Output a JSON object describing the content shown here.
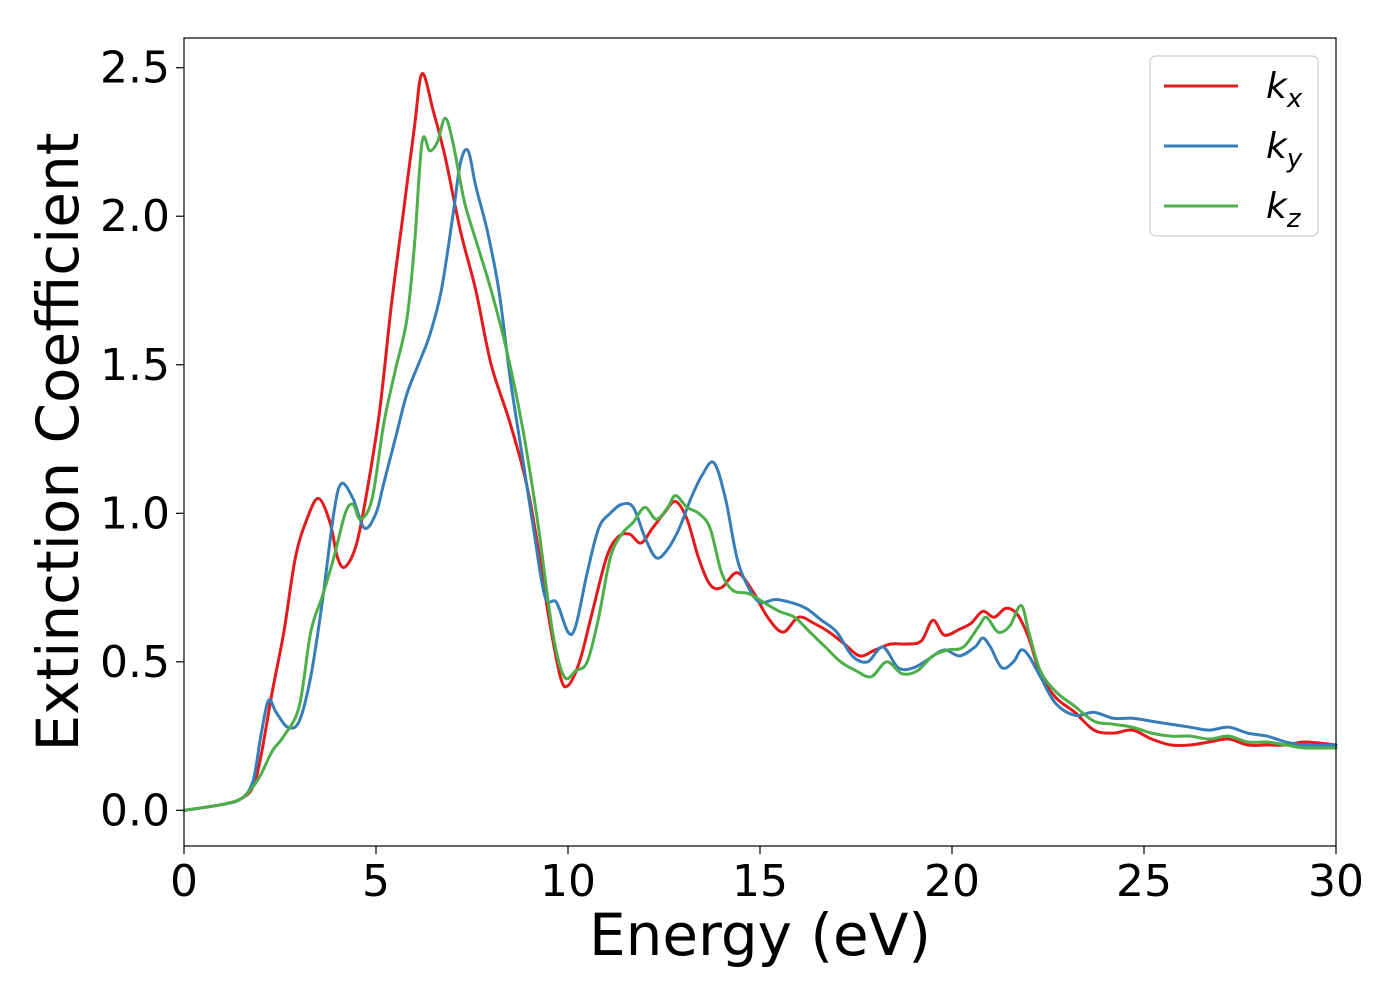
{
  "chart_data": {
    "type": "line",
    "xlabel": "Energy (eV)",
    "ylabel": "Extinction Coefficient",
    "xlim": [
      0,
      30
    ],
    "ylim": [
      -0.12,
      2.6
    ],
    "xticks": [
      "0",
      "5",
      "10",
      "15",
      "20",
      "25",
      "30"
    ],
    "yticks": [
      "0.0",
      "0.5",
      "1.0",
      "1.5",
      "2.0",
      "2.5"
    ],
    "grid": false,
    "legend_position": "top-right",
    "series": [
      {
        "name": "k",
        "subscript": "x",
        "color": "#e41a1c",
        "x": [
          0,
          1,
          1.5,
          1.8,
          2.0,
          2.3,
          2.6,
          2.9,
          3.2,
          3.5,
          3.8,
          4.0,
          4.2,
          4.5,
          4.8,
          5.1,
          5.4,
          5.7,
          6.0,
          6.2,
          6.5,
          6.8,
          7.2,
          7.6,
          8.0,
          8.5,
          9.0,
          9.5,
          9.8,
          10.0,
          10.3,
          10.6,
          11.0,
          11.3,
          11.6,
          11.9,
          12.2,
          12.5,
          12.8,
          13.1,
          13.4,
          13.7,
          14.0,
          14.4,
          14.8,
          15.2,
          15.6,
          16.0,
          16.4,
          16.8,
          17.2,
          17.6,
          18.0,
          18.4,
          18.8,
          19.2,
          19.5,
          19.8,
          20.2,
          20.5,
          20.8,
          21.1,
          21.4,
          21.7,
          22.0,
          22.3,
          22.7,
          23.2,
          23.7,
          24.2,
          24.7,
          25.2,
          25.7,
          26.2,
          26.7,
          27.2,
          27.7,
          28.2,
          28.7,
          29.2,
          30
        ],
        "y": [
          0,
          0.02,
          0.04,
          0.08,
          0.18,
          0.4,
          0.6,
          0.85,
          0.98,
          1.05,
          0.97,
          0.85,
          0.82,
          0.9,
          1.1,
          1.35,
          1.7,
          2.0,
          2.3,
          2.48,
          2.35,
          2.2,
          1.95,
          1.75,
          1.5,
          1.3,
          1.05,
          0.65,
          0.45,
          0.42,
          0.5,
          0.65,
          0.85,
          0.92,
          0.93,
          0.9,
          0.95,
          1.0,
          1.04,
          0.98,
          0.85,
          0.76,
          0.75,
          0.8,
          0.74,
          0.65,
          0.6,
          0.65,
          0.63,
          0.6,
          0.56,
          0.52,
          0.54,
          0.56,
          0.56,
          0.57,
          0.64,
          0.59,
          0.61,
          0.63,
          0.67,
          0.65,
          0.68,
          0.66,
          0.58,
          0.46,
          0.38,
          0.33,
          0.27,
          0.26,
          0.27,
          0.24,
          0.22,
          0.22,
          0.23,
          0.24,
          0.22,
          0.22,
          0.22,
          0.23,
          0.22
        ]
      },
      {
        "name": "k",
        "subscript": "y",
        "color": "#377eb8",
        "x": [
          0,
          1,
          1.5,
          1.8,
          2.0,
          2.2,
          2.4,
          2.7,
          3.0,
          3.3,
          3.6,
          3.9,
          4.1,
          4.4,
          4.7,
          5.0,
          5.2,
          5.5,
          5.8,
          6.1,
          6.4,
          6.7,
          7.0,
          7.2,
          7.4,
          7.6,
          7.9,
          8.2,
          8.5,
          8.8,
          9.1,
          9.4,
          9.7,
          10.0,
          10.2,
          10.5,
          10.8,
          11.1,
          11.4,
          11.7,
          12.0,
          12.3,
          12.6,
          12.9,
          13.2,
          13.5,
          13.8,
          14.1,
          14.4,
          14.7,
          15.0,
          15.4,
          15.8,
          16.2,
          16.6,
          17.0,
          17.4,
          17.8,
          18.2,
          18.6,
          19.0,
          19.4,
          19.8,
          20.2,
          20.6,
          20.8,
          21.0,
          21.3,
          21.6,
          21.8,
          22.0,
          22.3,
          22.7,
          23.2,
          23.7,
          24.2,
          24.7,
          25.2,
          25.7,
          26.2,
          26.7,
          27.2,
          27.7,
          28.2,
          28.7,
          29.2,
          30
        ],
        "y": [
          0,
          0.02,
          0.04,
          0.1,
          0.25,
          0.37,
          0.33,
          0.28,
          0.3,
          0.45,
          0.7,
          1.0,
          1.1,
          1.05,
          0.95,
          1.0,
          1.1,
          1.25,
          1.4,
          1.5,
          1.6,
          1.75,
          2.0,
          2.18,
          2.22,
          2.1,
          1.95,
          1.75,
          1.45,
          1.2,
          0.95,
          0.72,
          0.7,
          0.6,
          0.62,
          0.8,
          0.95,
          1.0,
          1.03,
          1.02,
          0.92,
          0.85,
          0.88,
          0.95,
          1.05,
          1.13,
          1.17,
          1.05,
          0.85,
          0.75,
          0.7,
          0.71,
          0.7,
          0.68,
          0.64,
          0.6,
          0.52,
          0.5,
          0.55,
          0.48,
          0.48,
          0.51,
          0.54,
          0.52,
          0.55,
          0.58,
          0.55,
          0.48,
          0.5,
          0.54,
          0.52,
          0.45,
          0.36,
          0.32,
          0.33,
          0.31,
          0.31,
          0.3,
          0.29,
          0.28,
          0.27,
          0.28,
          0.26,
          0.25,
          0.23,
          0.22,
          0.22
        ]
      },
      {
        "name": "k",
        "subscript": "z",
        "color": "#4daf4a",
        "x": [
          0,
          1,
          1.5,
          1.8,
          2.0,
          2.3,
          2.6,
          3.0,
          3.3,
          3.6,
          3.9,
          4.2,
          4.4,
          4.6,
          4.9,
          5.2,
          5.5,
          5.8,
          6.0,
          6.2,
          6.4,
          6.6,
          6.8,
          7.0,
          7.3,
          7.6,
          8.0,
          8.4,
          8.8,
          9.2,
          9.6,
          9.9,
          10.2,
          10.5,
          10.8,
          11.1,
          11.4,
          11.7,
          12.0,
          12.3,
          12.6,
          12.8,
          13.1,
          13.4,
          13.7,
          14.0,
          14.3,
          14.7,
          15.1,
          15.5,
          15.9,
          16.3,
          16.7,
          17.1,
          17.5,
          17.9,
          18.3,
          18.7,
          19.1,
          19.5,
          19.9,
          20.3,
          20.7,
          20.9,
          21.2,
          21.5,
          21.8,
          22.0,
          22.3,
          22.7,
          23.2,
          23.7,
          24.2,
          24.7,
          25.2,
          25.7,
          26.2,
          26.7,
          27.2,
          27.7,
          28.2,
          28.7,
          29.2,
          30
        ],
        "y": [
          0,
          0.02,
          0.04,
          0.08,
          0.12,
          0.2,
          0.25,
          0.35,
          0.6,
          0.72,
          0.85,
          1.0,
          1.03,
          0.98,
          1.05,
          1.3,
          1.48,
          1.65,
          1.9,
          2.25,
          2.22,
          2.25,
          2.33,
          2.25,
          2.05,
          1.92,
          1.75,
          1.55,
          1.3,
          0.98,
          0.6,
          0.45,
          0.47,
          0.5,
          0.65,
          0.85,
          0.93,
          0.97,
          1.02,
          0.98,
          1.02,
          1.06,
          1.02,
          1.0,
          0.95,
          0.8,
          0.74,
          0.73,
          0.7,
          0.67,
          0.65,
          0.6,
          0.55,
          0.5,
          0.47,
          0.45,
          0.5,
          0.46,
          0.47,
          0.52,
          0.54,
          0.55,
          0.62,
          0.65,
          0.6,
          0.62,
          0.69,
          0.6,
          0.47,
          0.4,
          0.35,
          0.3,
          0.29,
          0.28,
          0.26,
          0.25,
          0.25,
          0.24,
          0.25,
          0.23,
          0.23,
          0.22,
          0.21,
          0.21
        ]
      }
    ]
  }
}
